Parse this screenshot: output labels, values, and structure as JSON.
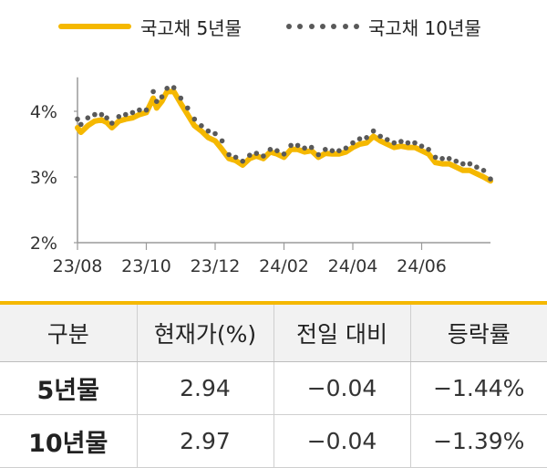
{
  "legend": {
    "series1": "국고채 5년물",
    "series2": "국고채 10년물"
  },
  "colors": {
    "series1": "#f5b800",
    "series2": "#595959",
    "accent": "#f5b800"
  },
  "chart_data": {
    "type": "line",
    "title": "",
    "xlabel": "",
    "ylabel": "",
    "y_ticks": [
      "2%",
      "3%",
      "4%"
    ],
    "x_ticks": [
      "23/08",
      "23/10",
      "23/12",
      "24/02",
      "24/04",
      "24/06"
    ],
    "ylim": [
      2,
      4.6
    ],
    "xlim": [
      0,
      12
    ],
    "legend_position": "top",
    "series": [
      {
        "name": "국고채 5년물",
        "style": "solid",
        "x": [
          0,
          0.1,
          0.3,
          0.5,
          0.7,
          0.85,
          1.0,
          1.2,
          1.4,
          1.6,
          1.8,
          2.0,
          2.2,
          2.3,
          2.45,
          2.6,
          2.8,
          3.0,
          3.2,
          3.4,
          3.6,
          3.8,
          4.0,
          4.2,
          4.4,
          4.6,
          4.8,
          5.0,
          5.2,
          5.4,
          5.6,
          5.8,
          6.0,
          6.2,
          6.4,
          6.6,
          6.8,
          7.0,
          7.2,
          7.4,
          7.6,
          7.8,
          8.0,
          8.2,
          8.4,
          8.6,
          8.8,
          9.0,
          9.2,
          9.4,
          9.6,
          9.8,
          10.0,
          10.2,
          10.4,
          10.6,
          10.8,
          11.0,
          11.2,
          11.4,
          11.6,
          11.8,
          12.0
        ],
        "values": [
          3.75,
          3.68,
          3.78,
          3.85,
          3.87,
          3.83,
          3.75,
          3.85,
          3.88,
          3.9,
          3.95,
          3.98,
          4.2,
          4.05,
          4.15,
          4.3,
          4.3,
          4.12,
          3.95,
          3.78,
          3.7,
          3.6,
          3.55,
          3.42,
          3.28,
          3.25,
          3.18,
          3.28,
          3.32,
          3.28,
          3.38,
          3.35,
          3.3,
          3.42,
          3.42,
          3.38,
          3.4,
          3.3,
          3.36,
          3.35,
          3.35,
          3.38,
          3.45,
          3.5,
          3.52,
          3.62,
          3.55,
          3.5,
          3.45,
          3.47,
          3.45,
          3.45,
          3.4,
          3.35,
          3.22,
          3.2,
          3.2,
          3.15,
          3.1,
          3.1,
          3.05,
          3.0,
          2.94
        ]
      },
      {
        "name": "국고채 10년물",
        "style": "dotted",
        "x": [
          0,
          0.1,
          0.3,
          0.5,
          0.7,
          0.85,
          1.0,
          1.2,
          1.4,
          1.6,
          1.8,
          2.0,
          2.2,
          2.3,
          2.45,
          2.6,
          2.8,
          3.0,
          3.2,
          3.4,
          3.6,
          3.8,
          4.0,
          4.2,
          4.4,
          4.6,
          4.8,
          5.0,
          5.2,
          5.4,
          5.6,
          5.8,
          6.0,
          6.2,
          6.4,
          6.6,
          6.8,
          7.0,
          7.2,
          7.4,
          7.6,
          7.8,
          8.0,
          8.2,
          8.4,
          8.6,
          8.8,
          9.0,
          9.2,
          9.4,
          9.6,
          9.8,
          10.0,
          10.2,
          10.4,
          10.6,
          10.8,
          11.0,
          11.2,
          11.4,
          11.6,
          11.8,
          12.0
        ],
        "values": [
          3.88,
          3.8,
          3.9,
          3.95,
          3.95,
          3.9,
          3.82,
          3.92,
          3.95,
          3.98,
          4.02,
          4.02,
          4.3,
          4.15,
          4.22,
          4.35,
          4.36,
          4.2,
          4.05,
          3.88,
          3.78,
          3.7,
          3.66,
          3.55,
          3.34,
          3.3,
          3.24,
          3.33,
          3.36,
          3.32,
          3.42,
          3.4,
          3.35,
          3.48,
          3.48,
          3.44,
          3.45,
          3.34,
          3.42,
          3.4,
          3.4,
          3.44,
          3.52,
          3.58,
          3.6,
          3.7,
          3.62,
          3.57,
          3.52,
          3.54,
          3.52,
          3.52,
          3.47,
          3.42,
          3.3,
          3.28,
          3.28,
          3.24,
          3.2,
          3.2,
          3.15,
          3.1,
          2.97
        ]
      }
    ]
  },
  "table": {
    "headers": [
      "구분",
      "현재가(%)",
      "전일 대비",
      "등락률"
    ],
    "rows": [
      [
        "5년물",
        "2.94",
        "−0.04",
        "−1.44%"
      ],
      [
        "10년물",
        "2.97",
        "−0.04",
        "−1.39%"
      ]
    ]
  }
}
